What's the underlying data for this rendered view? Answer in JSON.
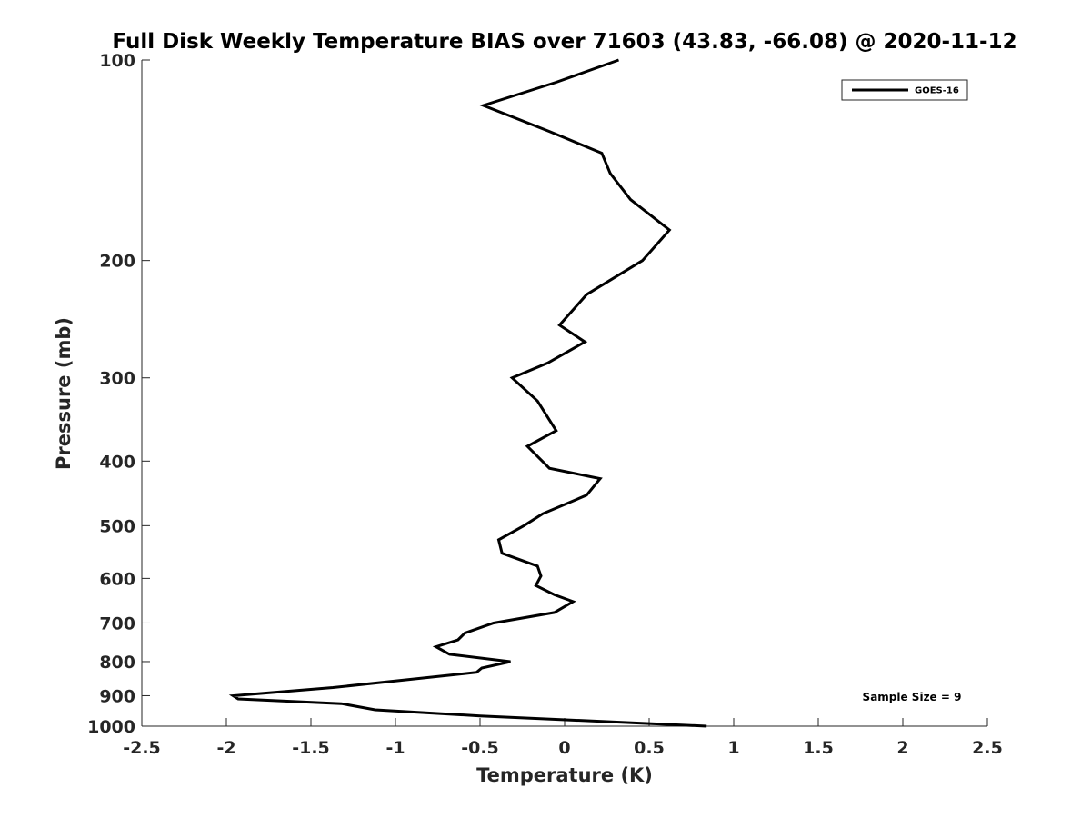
{
  "chart_data": {
    "type": "line",
    "title": "Full Disk Weekly Temperature BIAS over 71603 (43.83, -66.08) @ 2020-11-12",
    "xlabel": "Temperature (K)",
    "ylabel": "Pressure (mb)",
    "xlim": [
      -2.5,
      2.5
    ],
    "ylim": [
      100,
      1000
    ],
    "yscale": "log",
    "y_reversed": true,
    "x_ticks": [
      -2.5,
      -2,
      -1.5,
      -1,
      -0.5,
      0,
      0.5,
      1,
      1.5,
      2,
      2.5
    ],
    "x_tick_labels": [
      "-2.5",
      "-2",
      "-1.5",
      "-1",
      "-0.5",
      "0",
      "0.5",
      "1",
      "1.5",
      "2",
      "2.5"
    ],
    "y_ticks": [
      100,
      200,
      300,
      400,
      500,
      600,
      700,
      800,
      900,
      1000
    ],
    "y_tick_labels": [
      "100",
      "200",
      "300",
      "400",
      "500",
      "600",
      "700",
      "800",
      "900",
      "1000"
    ],
    "grid": false,
    "legend_position": "top-right",
    "series": [
      {
        "name": "GOES-16",
        "color": "#000000",
        "points": [
          [
            0.32,
            100
          ],
          [
            -0.05,
            108
          ],
          [
            -0.48,
            117
          ],
          [
            -0.09,
            128
          ],
          [
            0.22,
            138
          ],
          [
            0.27,
            148
          ],
          [
            0.39,
            162
          ],
          [
            0.62,
            180
          ],
          [
            0.46,
            200
          ],
          [
            0.13,
            225
          ],
          [
            -0.03,
            250
          ],
          [
            0.12,
            265
          ],
          [
            -0.1,
            285
          ],
          [
            -0.31,
            300
          ],
          [
            -0.16,
            325
          ],
          [
            -0.05,
            360
          ],
          [
            -0.22,
            380
          ],
          [
            -0.09,
            410
          ],
          [
            0.21,
            425
          ],
          [
            0.13,
            450
          ],
          [
            -0.13,
            480
          ],
          [
            -0.24,
            500
          ],
          [
            -0.39,
            525
          ],
          [
            -0.37,
            550
          ],
          [
            -0.16,
            575
          ],
          [
            -0.14,
            595
          ],
          [
            -0.17,
            615
          ],
          [
            -0.06,
            635
          ],
          [
            0.05,
            650
          ],
          [
            -0.06,
            675
          ],
          [
            -0.42,
            700
          ],
          [
            -0.59,
            725
          ],
          [
            -0.63,
            742
          ],
          [
            -0.76,
            760
          ],
          [
            -0.68,
            780
          ],
          [
            -0.32,
            800
          ],
          [
            -0.49,
            818
          ],
          [
            -0.52,
            830
          ],
          [
            -0.9,
            850
          ],
          [
            -1.37,
            875
          ],
          [
            -1.96,
            900
          ],
          [
            -1.93,
            910
          ],
          [
            -1.32,
            925
          ],
          [
            -1.12,
            945
          ],
          [
            -0.5,
            965
          ],
          [
            0.84,
            1000
          ]
        ]
      }
    ],
    "legend": [
      "GOES-16"
    ],
    "annotations": [
      "Sample Size = 9"
    ]
  }
}
